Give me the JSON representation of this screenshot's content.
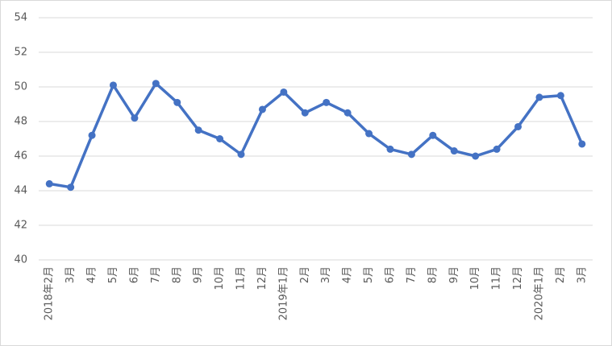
{
  "chart_data": {
    "type": "line",
    "categories": [
      "2018年2月",
      "3月",
      "4月",
      "5月",
      "6月",
      "7月",
      "8月",
      "9月",
      "10月",
      "11月",
      "12月",
      "2019年1月",
      "2月",
      "3月",
      "4月",
      "5月",
      "6月",
      "7月",
      "8月",
      "9月",
      "10月",
      "11月",
      "12月",
      "2020年1月",
      "2月",
      "3月"
    ],
    "values": [
      44.4,
      44.2,
      47.2,
      50.1,
      48.2,
      50.2,
      49.1,
      47.5,
      47.0,
      46.1,
      48.7,
      49.7,
      48.5,
      49.1,
      48.5,
      47.3,
      46.4,
      46.1,
      47.2,
      46.3,
      46.0,
      46.4,
      47.7,
      49.4,
      49.5,
      46.7
    ],
    "color": "#4472c4",
    "ylim": [
      40,
      54
    ],
    "yticks": [
      40,
      42,
      44,
      46,
      48,
      50,
      52,
      54
    ],
    "grid": true
  }
}
